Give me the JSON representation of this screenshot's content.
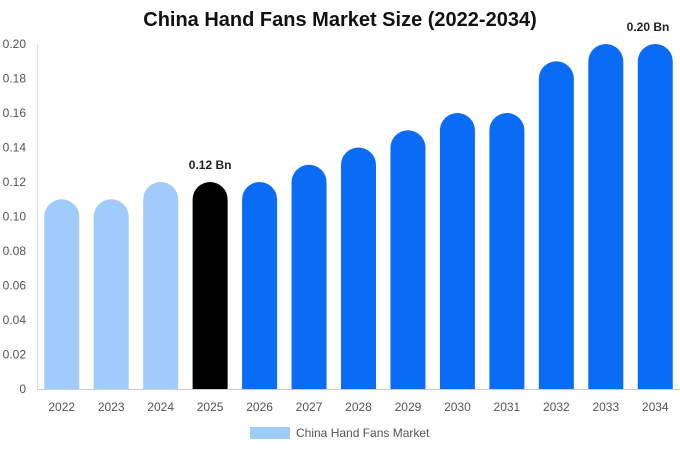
{
  "chart_data": {
    "type": "bar",
    "title": "China Hand Fans Market Size (2022-2034)",
    "categories": [
      "2022",
      "2023",
      "2024",
      "2025",
      "2026",
      "2027",
      "2028",
      "2029",
      "2030",
      "2031",
      "2032",
      "2033",
      "2034"
    ],
    "values": [
      0.11,
      0.11,
      0.12,
      0.12,
      0.12,
      0.13,
      0.14,
      0.15,
      0.16,
      0.16,
      0.19,
      0.2,
      0.2
    ],
    "bar_colors": [
      "#a0ccfc",
      "#a0ccfc",
      "#a0ccfc",
      "#000000",
      "#0a6cf5",
      "#0a6cf5",
      "#0a6cf5",
      "#0a6cf5",
      "#0a6cf5",
      "#0a6cf5",
      "#0a6cf5",
      "#0a6cf5",
      "#0a6cf5"
    ],
    "data_labels": [
      {
        "category": "2025",
        "text": "0.12 Bn"
      },
      {
        "category": "2034",
        "text": "0.20 Bn"
      }
    ],
    "yticks": [
      "0",
      "0.02",
      "0.04",
      "0.06",
      "0.08",
      "0.10",
      "0.12",
      "0.14",
      "0.16",
      "0.18",
      "0.20"
    ],
    "ylim": [
      0,
      0.2
    ],
    "xlabel": "",
    "ylabel": "",
    "grid": false,
    "legend": {
      "label": "China Hand Fans Market",
      "color": "#a0ccfc",
      "placement": "bottom"
    }
  }
}
